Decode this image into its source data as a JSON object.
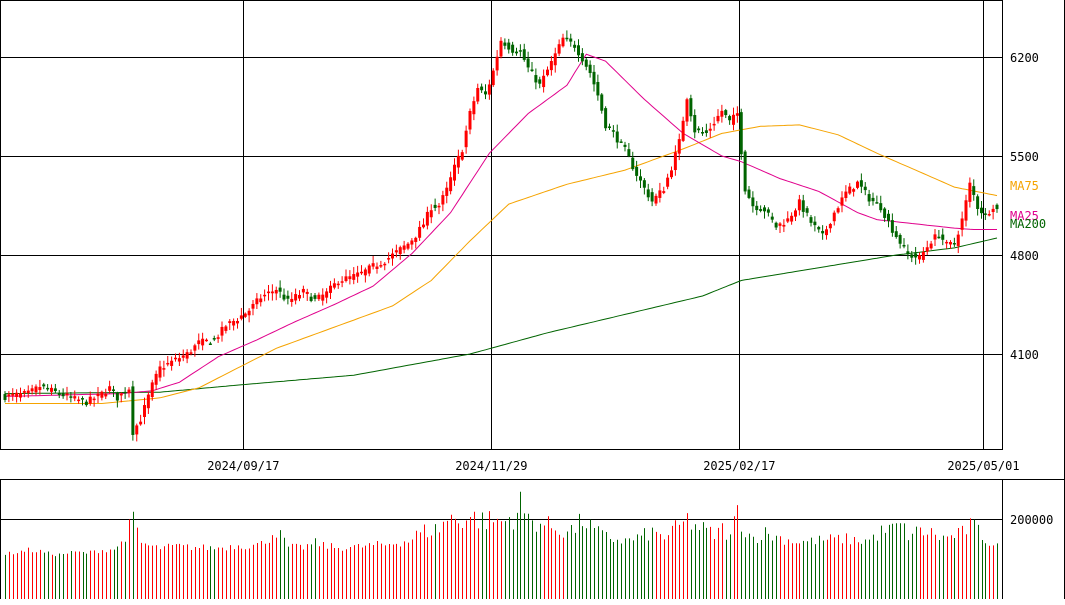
{
  "chart_data": [
    {
      "type": "candlestick",
      "title": "",
      "xlabel": "",
      "ylabel": "",
      "x_tick_labels": [
        "2024/09/17",
        "2024/11/29",
        "2025/02/17",
        "2025/05/01"
      ],
      "y_ticks": [
        4100,
        4800,
        5500,
        6200
      ],
      "ylim": [
        3450,
        6600
      ],
      "grid": true,
      "legend": [
        "MA75",
        "MA25",
        "MA200"
      ],
      "colors": {
        "up": "#ff0000",
        "down": "#006400",
        "ma25": "#e0008c",
        "ma75": "#f5a300",
        "ma200": "#006400",
        "grid": "#000000"
      },
      "candle_anchors": [
        [
          0,
          3800
        ],
        [
          6,
          3820
        ],
        [
          9,
          3870
        ],
        [
          13,
          3830
        ],
        [
          18,
          3780
        ],
        [
          21,
          3760
        ],
        [
          24,
          3800
        ],
        [
          27,
          3860
        ],
        [
          29,
          3790
        ],
        [
          32,
          3860
        ],
        [
          33,
          3550
        ],
        [
          35,
          3640
        ],
        [
          38,
          3880
        ],
        [
          40,
          4000
        ],
        [
          44,
          4060
        ],
        [
          47,
          4100
        ],
        [
          50,
          4180
        ],
        [
          54,
          4200
        ],
        [
          57,
          4300
        ],
        [
          60,
          4350
        ],
        [
          63,
          4410
        ],
        [
          66,
          4500
        ],
        [
          70,
          4560
        ],
        [
          73,
          4470
        ],
        [
          77,
          4540
        ],
        [
          80,
          4480
        ],
        [
          83,
          4530
        ],
        [
          86,
          4620
        ],
        [
          89,
          4640
        ],
        [
          92,
          4670
        ],
        [
          95,
          4720
        ],
        [
          98,
          4760
        ],
        [
          101,
          4820
        ],
        [
          104,
          4880
        ],
        [
          106,
          4940
        ],
        [
          108,
          5020
        ],
        [
          110,
          5140
        ],
        [
          112,
          5150
        ],
        [
          114,
          5260
        ],
        [
          116,
          5420
        ],
        [
          118,
          5550
        ],
        [
          120,
          5800
        ],
        [
          122,
          5980
        ],
        [
          124,
          5930
        ],
        [
          126,
          6100
        ],
        [
          128,
          6320
        ],
        [
          131,
          6250
        ],
        [
          133,
          6240
        ],
        [
          135,
          6120
        ],
        [
          138,
          6000
        ],
        [
          141,
          6160
        ],
        [
          144,
          6330
        ],
        [
          147,
          6280
        ],
        [
          149,
          6190
        ],
        [
          151,
          6090
        ],
        [
          153,
          5930
        ],
        [
          155,
          5720
        ],
        [
          157,
          5660
        ],
        [
          160,
          5540
        ],
        [
          163,
          5370
        ],
        [
          165,
          5270
        ],
        [
          167,
          5180
        ],
        [
          170,
          5270
        ],
        [
          172,
          5420
        ],
        [
          174,
          5600
        ],
        [
          176,
          5920
        ],
        [
          178,
          5680
        ],
        [
          181,
          5660
        ],
        [
          183,
          5740
        ],
        [
          185,
          5820
        ],
        [
          187,
          5740
        ],
        [
          189,
          5800
        ],
        [
          191,
          5270
        ],
        [
          193,
          5150
        ],
        [
          196,
          5120
        ],
        [
          199,
          5000
        ],
        [
          202,
          5050
        ],
        [
          205,
          5170
        ],
        [
          208,
          5030
        ],
        [
          211,
          4930
        ],
        [
          214,
          5100
        ],
        [
          217,
          5240
        ],
        [
          220,
          5310
        ],
        [
          223,
          5200
        ],
        [
          226,
          5140
        ],
        [
          229,
          4980
        ],
        [
          231,
          4890
        ],
        [
          233,
          4800
        ],
        [
          236,
          4780
        ],
        [
          239,
          4900
        ],
        [
          241,
          4950
        ],
        [
          243,
          4870
        ],
        [
          245,
          4880
        ],
        [
          247,
          5050
        ],
        [
          249,
          5300
        ],
        [
          251,
          5140
        ],
        [
          253,
          5080
        ],
        [
          255,
          5150
        ],
        [
          256,
          5120
        ]
      ],
      "ma25": [
        [
          0,
          3800
        ],
        [
          15,
          3810
        ],
        [
          30,
          3820
        ],
        [
          38,
          3840
        ],
        [
          45,
          3900
        ],
        [
          55,
          4080
        ],
        [
          65,
          4200
        ],
        [
          75,
          4330
        ],
        [
          85,
          4450
        ],
        [
          95,
          4580
        ],
        [
          105,
          4810
        ],
        [
          115,
          5100
        ],
        [
          125,
          5520
        ],
        [
          135,
          5800
        ],
        [
          145,
          6000
        ],
        [
          150,
          6220
        ],
        [
          155,
          6170
        ],
        [
          165,
          5900
        ],
        [
          175,
          5660
        ],
        [
          185,
          5500
        ],
        [
          190,
          5460
        ],
        [
          200,
          5340
        ],
        [
          210,
          5250
        ],
        [
          220,
          5100
        ],
        [
          225,
          5050
        ],
        [
          235,
          5020
        ],
        [
          245,
          4990
        ],
        [
          250,
          4980
        ],
        [
          256,
          4980
        ]
      ],
      "ma75": [
        [
          0,
          3750
        ],
        [
          25,
          3750
        ],
        [
          40,
          3790
        ],
        [
          50,
          3860
        ],
        [
          60,
          4000
        ],
        [
          70,
          4140
        ],
        [
          85,
          4290
        ],
        [
          100,
          4440
        ],
        [
          110,
          4620
        ],
        [
          120,
          4900
        ],
        [
          130,
          5160
        ],
        [
          145,
          5300
        ],
        [
          160,
          5400
        ],
        [
          175,
          5550
        ],
        [
          185,
          5660
        ],
        [
          195,
          5710
        ],
        [
          205,
          5720
        ],
        [
          215,
          5650
        ],
        [
          225,
          5520
        ],
        [
          235,
          5400
        ],
        [
          245,
          5280
        ],
        [
          256,
          5220
        ]
      ],
      "ma200": [
        [
          0,
          3820
        ],
        [
          40,
          3830
        ],
        [
          60,
          3880
        ],
        [
          90,
          3950
        ],
        [
          110,
          4050
        ],
        [
          120,
          4100
        ],
        [
          140,
          4250
        ],
        [
          160,
          4380
        ],
        [
          180,
          4510
        ],
        [
          190,
          4620
        ],
        [
          210,
          4710
        ],
        [
          230,
          4800
        ],
        [
          245,
          4850
        ],
        [
          256,
          4920
        ]
      ]
    },
    {
      "type": "bar",
      "title": "",
      "xlabel": "",
      "ylabel": "",
      "y_ticks": [
        200000
      ],
      "ylim": [
        0,
        280000
      ],
      "color_rule": "red bar when the day's candle is up, green bar when down",
      "volume_anchors": [
        [
          0,
          25000
        ],
        [
          6,
          45000
        ],
        [
          9,
          38000
        ],
        [
          13,
          20000
        ],
        [
          18,
          35000
        ],
        [
          21,
          30000
        ],
        [
          24,
          42000
        ],
        [
          27,
          48000
        ],
        [
          29,
          55000
        ],
        [
          32,
          155000
        ],
        [
          33,
          190000
        ],
        [
          35,
          80000
        ],
        [
          38,
          60000
        ],
        [
          40,
          55000
        ],
        [
          44,
          65000
        ],
        [
          47,
          60000
        ],
        [
          50,
          58000
        ],
        [
          54,
          55000
        ],
        [
          57,
          60000
        ],
        [
          60,
          70000
        ],
        [
          63,
          65000
        ],
        [
          66,
          75000
        ],
        [
          70,
          145000
        ],
        [
          73,
          60000
        ],
        [
          77,
          58000
        ],
        [
          80,
          80000
        ],
        [
          83,
          65000
        ],
        [
          86,
          55000
        ],
        [
          89,
          60000
        ],
        [
          92,
          62000
        ],
        [
          95,
          70000
        ],
        [
          98,
          70000
        ],
        [
          101,
          85000
        ],
        [
          104,
          90000
        ],
        [
          106,
          120000
        ],
        [
          108,
          140000
        ],
        [
          110,
          140000
        ],
        [
          112,
          155000
        ],
        [
          114,
          200000
        ],
        [
          116,
          200000
        ],
        [
          118,
          200000
        ],
        [
          120,
          210000
        ],
        [
          122,
          200000
        ],
        [
          124,
          190000
        ],
        [
          126,
          195000
        ],
        [
          128,
          185000
        ],
        [
          131,
          210000
        ],
        [
          133,
          270000
        ],
        [
          135,
          200000
        ],
        [
          138,
          180000
        ],
        [
          141,
          160000
        ],
        [
          144,
          140000
        ],
        [
          147,
          150000
        ],
        [
          149,
          200000
        ],
        [
          151,
          160000
        ],
        [
          153,
          130000
        ],
        [
          155,
          110000
        ],
        [
          157,
          100000
        ],
        [
          160,
          90000
        ],
        [
          163,
          105000
        ],
        [
          165,
          120000
        ],
        [
          167,
          130000
        ],
        [
          170,
          110000
        ],
        [
          172,
          140000
        ],
        [
          174,
          160000
        ],
        [
          176,
          195000
        ],
        [
          178,
          165000
        ],
        [
          181,
          140000
        ],
        [
          183,
          120000
        ],
        [
          185,
          150000
        ],
        [
          187,
          110000
        ],
        [
          189,
          245000
        ],
        [
          191,
          140000
        ],
        [
          193,
          105000
        ],
        [
          196,
          130000
        ],
        [
          199,
          110000
        ],
        [
          202,
          95000
        ],
        [
          205,
          85000
        ],
        [
          208,
          90000
        ],
        [
          211,
          95000
        ],
        [
          214,
          100000
        ],
        [
          217,
          100000
        ],
        [
          220,
          90000
        ],
        [
          223,
          95000
        ],
        [
          226,
          135000
        ],
        [
          229,
          150000
        ],
        [
          231,
          170000
        ],
        [
          233,
          120000
        ],
        [
          236,
          140000
        ],
        [
          239,
          130000
        ],
        [
          241,
          110000
        ],
        [
          243,
          105000
        ],
        [
          245,
          120000
        ],
        [
          247,
          130000
        ],
        [
          249,
          170000
        ],
        [
          251,
          140000
        ],
        [
          253,
          95000
        ],
        [
          255,
          75000
        ],
        [
          256,
          70000
        ]
      ]
    }
  ]
}
